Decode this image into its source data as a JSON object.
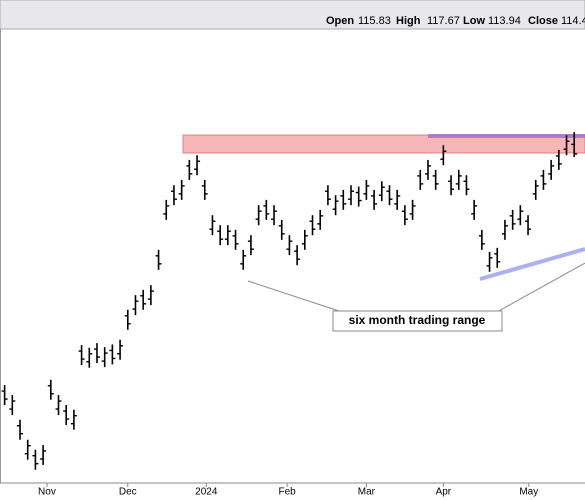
{
  "chart_data": {
    "type": "ohlc",
    "annotation": "six month trading range",
    "header_labels": [
      "Open",
      "High",
      "Low",
      "Close"
    ],
    "color": "#000000",
    "xlim": [
      -0.6,
      75.4
    ],
    "ylim": [
      65,
      133
    ],
    "xticks": [
      {
        "value": 5.5,
        "label": "Nov"
      },
      {
        "value": 16,
        "label": "Dec"
      },
      {
        "value": 26.2,
        "label": "2024"
      },
      {
        "value": 36.7,
        "label": "Feb"
      },
      {
        "value": 47,
        "label": "Mar"
      },
      {
        "value": 57,
        "label": "Apr"
      },
      {
        "value": 68.1,
        "label": "May"
      }
    ],
    "open": [
      78.8,
      76.1,
      73.6,
      69.4,
      69.1,
      68.6,
      79.6,
      76.1,
      75.8,
      73.9,
      84.8,
      83.2,
      85.1,
      83.3,
      84.9,
      84.4,
      90.1,
      91.1,
      93.1,
      92.6,
      99.1,
      105.4,
      108.8,
      108.4,
      112.6,
      112.1,
      109.6,
      103.1,
      102.8,
      101.6,
      102.1,
      97.9,
      101.3,
      104.6,
      106.6,
      104.6,
      103.6,
      100.1,
      99.8,
      100.9,
      104.3,
      103.9,
      108.8,
      106.1,
      108.1,
      107.6,
      108.6,
      108.4,
      108.1,
      108.2,
      108.8,
      106.9,
      105.8,
      105.4,
      111.1,
      111.4,
      111.1,
      113.6,
      110.3,
      109.9,
      110.3,
      105.4,
      102.1,
      97.6,
      99.4,
      102.4,
      105.1,
      104.6,
      104.3,
      108.4,
      111.1,
      111.4,
      114.1,
      115.1,
      115.83
    ],
    "high": [
      79.7,
      78.2,
      74.5,
      71.5,
      70.0,
      70.7,
      80.5,
      78.2,
      76.7,
      76.0,
      85.7,
      85.3,
      86.0,
      85.4,
      85.8,
      86.5,
      91.0,
      93.2,
      94.0,
      94.7,
      100.0,
      107.5,
      109.7,
      110.5,
      113.5,
      114.2,
      110.5,
      105.2,
      103.7,
      103.7,
      103.0,
      100.0,
      102.2,
      106.7,
      107.5,
      106.7,
      104.5,
      102.2,
      100.7,
      103.0,
      105.2,
      106.0,
      109.7,
      108.2,
      109.0,
      109.7,
      109.5,
      110.5,
      109.0,
      110.3,
      109.7,
      109.0,
      106.7,
      107.5,
      112.0,
      113.5,
      112.0,
      115.7,
      111.2,
      112.0,
      111.2,
      107.5,
      103.0,
      99.7,
      100.3,
      104.5,
      106.0,
      106.7,
      105.2,
      110.5,
      112.0,
      113.5,
      115.0,
      117.2,
      117.67
    ],
    "low": [
      76.7,
      75.2,
      71.5,
      68.5,
      67.0,
      67.7,
      77.5,
      75.2,
      73.7,
      73.0,
      82.7,
      82.3,
      83.0,
      82.4,
      82.8,
      83.5,
      88.0,
      90.2,
      91.0,
      91.7,
      97.0,
      104.5,
      106.7,
      107.5,
      110.5,
      111.2,
      107.5,
      102.2,
      100.7,
      100.7,
      100.0,
      97.0,
      99.2,
      103.7,
      104.5,
      103.7,
      101.5,
      99.2,
      97.7,
      100.0,
      102.2,
      103.0,
      106.7,
      105.2,
      106.0,
      106.7,
      106.5,
      107.5,
      106.0,
      107.3,
      106.7,
      106.0,
      103.7,
      104.5,
      109.0,
      110.5,
      109.0,
      112.7,
      108.2,
      109.0,
      108.2,
      104.5,
      100.0,
      96.7,
      97.3,
      101.5,
      103.0,
      103.7,
      102.2,
      107.5,
      109.0,
      110.5,
      112.0,
      114.2,
      113.94
    ],
    "close": [
      77.6,
      77.3,
      72.4,
      70.6,
      67.9,
      69.8,
      78.4,
      77.3,
      74.6,
      75.1,
      83.6,
      84.4,
      83.9,
      84.5,
      83.7,
      85.6,
      88.9,
      92.3,
      91.9,
      93.8,
      97.9,
      106.6,
      107.6,
      109.6,
      111.4,
      113.3,
      108.4,
      104.3,
      101.6,
      102.8,
      100.9,
      99.1,
      100.1,
      105.8,
      105.4,
      105.8,
      102.4,
      101.3,
      98.6,
      102.1,
      103.1,
      105.1,
      107.6,
      107.3,
      106.9,
      108.8,
      107.4,
      109.6,
      106.9,
      109.4,
      107.6,
      108.1,
      104.6,
      106.6,
      109.9,
      112.6,
      109.9,
      114.8,
      109.1,
      111.1,
      109.1,
      106.6,
      100.9,
      98.8,
      98.2,
      103.6,
      103.9,
      105.8,
      103.1,
      109.6,
      109.9,
      112.6,
      112.9,
      116.3,
      114.4
    ]
  }
}
